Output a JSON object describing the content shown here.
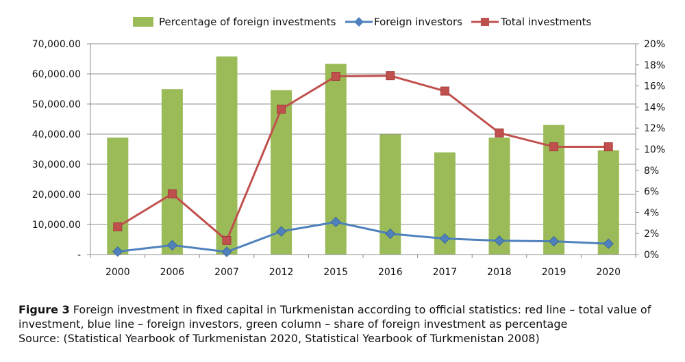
{
  "chart_data": {
    "type": "bar+line",
    "categories": [
      "2000",
      "2006",
      "2007",
      "2012",
      "2015",
      "2016",
      "2017",
      "2018",
      "2019",
      "2020"
    ],
    "legend_position": "top",
    "grid": true,
    "y_left": {
      "min": 0,
      "max": 70000,
      "step": 10000,
      "tick_labels": [
        "-",
        "10,000.00",
        "20,000.00",
        "30,000.00",
        "40,000.00",
        "50,000.00",
        "60,000.00",
        "70,000.00"
      ]
    },
    "y_right": {
      "min": 0,
      "max": 20,
      "step": 2,
      "tick_labels": [
        "0%",
        "2%",
        "4%",
        "6%",
        "8%",
        "10%",
        "12%",
        "14%",
        "16%",
        "18%",
        "20%"
      ]
    },
    "series": [
      {
        "name": "Percentage of foreign investments",
        "kind": "bar",
        "axis": "right",
        "color": "#9bbb59",
        "values": [
          11.1,
          15.7,
          18.8,
          15.6,
          18.1,
          11.4,
          9.7,
          11.1,
          12.3,
          9.9
        ]
      },
      {
        "name": "Foreign investors",
        "kind": "line",
        "axis": "left",
        "color": "#4f81bd",
        "marker": "diamond",
        "values": [
          1000,
          3100,
          900,
          7700,
          10800,
          6900,
          5300,
          4600,
          4400,
          3600
        ]
      },
      {
        "name": "Total investments",
        "kind": "line",
        "axis": "left",
        "color": "#c0504d",
        "marker": "square",
        "values": [
          9200,
          20200,
          4700,
          48300,
          59200,
          59400,
          54300,
          40400,
          35800,
          35800
        ]
      }
    ]
  },
  "caption": {
    "figure_label": "Figure 3",
    "text": " Foreign investment in fixed capital in Turkmenistan according to official statistics: red line – total value of investment, blue line – foreign investors, green column – share of foreign investment as percentage",
    "source": "Source: (Statistical Yearbook of Turkmenistan 2020, Statistical Yearbook of Turkmenistan 2008)"
  }
}
